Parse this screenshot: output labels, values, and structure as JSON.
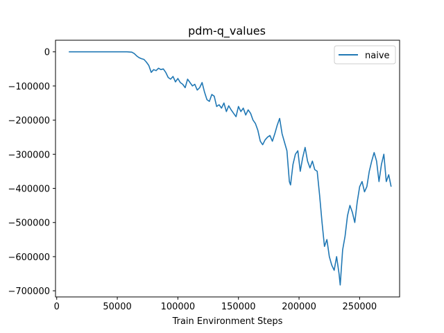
{
  "chart_data": {
    "type": "line",
    "title": "pdm-q_values",
    "xlabel": "Train Environment Steps",
    "ylabel": "",
    "xlim": [
      -1000,
      283000
    ],
    "ylim": [
      -718000,
      34000
    ],
    "xticks": [
      0,
      50000,
      100000,
      150000,
      200000,
      250000
    ],
    "xtick_labels": [
      "0",
      "50000",
      "100000",
      "150000",
      "200000",
      "250000"
    ],
    "yticks": [
      0,
      -100000,
      -200000,
      -300000,
      -400000,
      -500000,
      -600000,
      -700000
    ],
    "ytick_labels": [
      "0",
      "−100000",
      "−200000",
      "−300000",
      "−400000",
      "−500000",
      "−600000",
      "−700000"
    ],
    "grid": false,
    "legend": {
      "position": "top-right"
    },
    "series": [
      {
        "name": "naive",
        "color": "#1f77b4",
        "points": [
          [
            10000,
            0
          ],
          [
            30000,
            0
          ],
          [
            50000,
            0
          ],
          [
            58000,
            0
          ],
          [
            62000,
            -1000
          ],
          [
            64000,
            -5000
          ],
          [
            66000,
            -12000
          ],
          [
            68000,
            -17000
          ],
          [
            70000,
            -20000
          ],
          [
            72000,
            -22000
          ],
          [
            74000,
            -30000
          ],
          [
            76000,
            -40000
          ],
          [
            78000,
            -60000
          ],
          [
            80000,
            -52000
          ],
          [
            82000,
            -55000
          ],
          [
            84000,
            -48000
          ],
          [
            86000,
            -52000
          ],
          [
            88000,
            -50000
          ],
          [
            90000,
            -60000
          ],
          [
            92000,
            -75000
          ],
          [
            94000,
            -80000
          ],
          [
            96000,
            -72000
          ],
          [
            98000,
            -88000
          ],
          [
            100000,
            -78000
          ],
          [
            102000,
            -90000
          ],
          [
            104000,
            -95000
          ],
          [
            106000,
            -105000
          ],
          [
            108000,
            -80000
          ],
          [
            110000,
            -90000
          ],
          [
            112000,
            -100000
          ],
          [
            114000,
            -95000
          ],
          [
            116000,
            -112000
          ],
          [
            118000,
            -105000
          ],
          [
            120000,
            -90000
          ],
          [
            122000,
            -118000
          ],
          [
            124000,
            -140000
          ],
          [
            126000,
            -145000
          ],
          [
            128000,
            -125000
          ],
          [
            130000,
            -130000
          ],
          [
            132000,
            -160000
          ],
          [
            134000,
            -155000
          ],
          [
            136000,
            -165000
          ],
          [
            138000,
            -150000
          ],
          [
            140000,
            -175000
          ],
          [
            142000,
            -158000
          ],
          [
            144000,
            -170000
          ],
          [
            146000,
            -180000
          ],
          [
            148000,
            -190000
          ],
          [
            150000,
            -160000
          ],
          [
            152000,
            -175000
          ],
          [
            154000,
            -165000
          ],
          [
            156000,
            -185000
          ],
          [
            158000,
            -170000
          ],
          [
            160000,
            -180000
          ],
          [
            162000,
            -200000
          ],
          [
            164000,
            -210000
          ],
          [
            166000,
            -230000
          ],
          [
            168000,
            -262000
          ],
          [
            170000,
            -272000
          ],
          [
            172000,
            -258000
          ],
          [
            174000,
            -250000
          ],
          [
            176000,
            -245000
          ],
          [
            178000,
            -262000
          ],
          [
            180000,
            -240000
          ],
          [
            182000,
            -215000
          ],
          [
            184000,
            -195000
          ],
          [
            186000,
            -240000
          ],
          [
            188000,
            -265000
          ],
          [
            190000,
            -290000
          ],
          [
            192000,
            -380000
          ],
          [
            193000,
            -390000
          ],
          [
            195000,
            -330000
          ],
          [
            197000,
            -300000
          ],
          [
            199000,
            -290000
          ],
          [
            201000,
            -350000
          ],
          [
            203000,
            -310000
          ],
          [
            205000,
            -280000
          ],
          [
            207000,
            -320000
          ],
          [
            209000,
            -340000
          ],
          [
            211000,
            -320000
          ],
          [
            213000,
            -345000
          ],
          [
            215000,
            -350000
          ],
          [
            217000,
            -420000
          ],
          [
            219000,
            -500000
          ],
          [
            221000,
            -570000
          ],
          [
            223000,
            -550000
          ],
          [
            225000,
            -600000
          ],
          [
            227000,
            -625000
          ],
          [
            229000,
            -640000
          ],
          [
            231000,
            -600000
          ],
          [
            233000,
            -650000
          ],
          [
            234000,
            -683000
          ],
          [
            236000,
            -580000
          ],
          [
            238000,
            -540000
          ],
          [
            240000,
            -480000
          ],
          [
            242000,
            -450000
          ],
          [
            244000,
            -470000
          ],
          [
            246000,
            -500000
          ],
          [
            248000,
            -440000
          ],
          [
            250000,
            -395000
          ],
          [
            252000,
            -380000
          ],
          [
            254000,
            -410000
          ],
          [
            256000,
            -395000
          ],
          [
            258000,
            -350000
          ],
          [
            260000,
            -320000
          ],
          [
            262000,
            -295000
          ],
          [
            264000,
            -320000
          ],
          [
            266000,
            -380000
          ],
          [
            268000,
            -330000
          ],
          [
            270000,
            -300000
          ],
          [
            272000,
            -380000
          ],
          [
            274000,
            -360000
          ],
          [
            276000,
            -395000
          ]
        ]
      }
    ]
  }
}
